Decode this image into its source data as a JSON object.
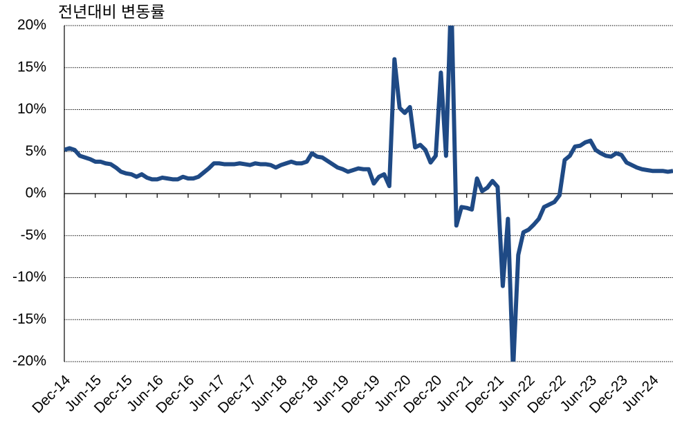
{
  "chart_data": {
    "type": "line",
    "title": "전년대비 변동률",
    "categories": [
      "Dec-14",
      null,
      null,
      null,
      null,
      null,
      "Jun-15",
      null,
      null,
      null,
      null,
      null,
      "Dec-15",
      null,
      null,
      null,
      null,
      null,
      "Jun-16",
      null,
      null,
      null,
      null,
      null,
      "Dec-16",
      null,
      null,
      null,
      null,
      null,
      "Jun-17",
      null,
      null,
      null,
      null,
      null,
      "Dec-17",
      null,
      null,
      null,
      null,
      null,
      "Jun-18",
      null,
      null,
      null,
      null,
      null,
      "Dec-18",
      null,
      null,
      null,
      null,
      null,
      "Jun-19",
      null,
      null,
      null,
      null,
      null,
      "Dec-19",
      null,
      null,
      null,
      null,
      null,
      "Jun-20",
      null,
      null,
      null,
      null,
      null,
      "Dec-20",
      null,
      null,
      null,
      null,
      null,
      "Jun-21",
      null,
      null,
      null,
      null,
      null,
      "Dec-21",
      null,
      null,
      null,
      null,
      null,
      "Jun-22",
      null,
      null,
      null,
      null,
      null,
      "Dec-22",
      null,
      null,
      null,
      null,
      null,
      "Jun-23",
      null,
      null,
      null,
      null,
      null,
      "Dec-23",
      null,
      null,
      null,
      null,
      null,
      "Jun-24",
      null,
      null,
      null,
      null
    ],
    "series": [
      {
        "color": "#1f4a85",
        "values": [
          5.2,
          5.4,
          5.2,
          4.5,
          4.3,
          4.1,
          3.8,
          3.8,
          3.6,
          3.5,
          3.1,
          2.6,
          2.4,
          2.3,
          2.0,
          2.3,
          1.9,
          1.7,
          1.7,
          1.9,
          1.8,
          1.7,
          1.7,
          2.0,
          1.8,
          1.8,
          2.0,
          2.5,
          3.0,
          3.6,
          3.6,
          3.5,
          3.5,
          3.5,
          3.6,
          3.5,
          3.4,
          3.6,
          3.5,
          3.5,
          3.4,
          3.1,
          3.4,
          3.6,
          3.8,
          3.6,
          3.6,
          3.8,
          4.8,
          4.4,
          4.3,
          3.9,
          3.5,
          3.1,
          2.9,
          2.6,
          2.8,
          3.0,
          2.9,
          2.9,
          1.2,
          2.0,
          2.3,
          0.9,
          16.0,
          10.2,
          9.6,
          10.3,
          5.5,
          5.8,
          5.2,
          3.7,
          4.5,
          14.4,
          4.5,
          24,
          -3.8,
          -1.6,
          -1.7,
          -1.9,
          1.8,
          0.3,
          0.7,
          1.5,
          0.8,
          -11.0,
          -3.0,
          -21,
          -7.3,
          -4.6,
          -4.3,
          -3.7,
          -3.0,
          -1.6,
          -1.3,
          -1.0,
          -0.2,
          4.0,
          4.5,
          5.6,
          5.7,
          6.1,
          6.3,
          5.2,
          4.8,
          4.5,
          4.4,
          4.8,
          4.6,
          3.7,
          3.4,
          3.1,
          2.9,
          2.8,
          2.7,
          2.7,
          2.7,
          2.6,
          2.7
        ]
      }
    ],
    "ylim": [
      -20,
      20
    ],
    "yticks": [
      {
        "value": -20,
        "label": "-20%"
      },
      {
        "value": -15,
        "label": "-15%"
      },
      {
        "value": -10,
        "label": "-10%"
      },
      {
        "value": -5,
        "label": "-5%"
      },
      {
        "value": 0,
        "label": "0%"
      },
      {
        "value": 5,
        "label": "5%"
      },
      {
        "value": 10,
        "label": "10%"
      },
      {
        "value": 15,
        "label": "15%"
      },
      {
        "value": 20,
        "label": "20%"
      }
    ],
    "grid": true
  }
}
